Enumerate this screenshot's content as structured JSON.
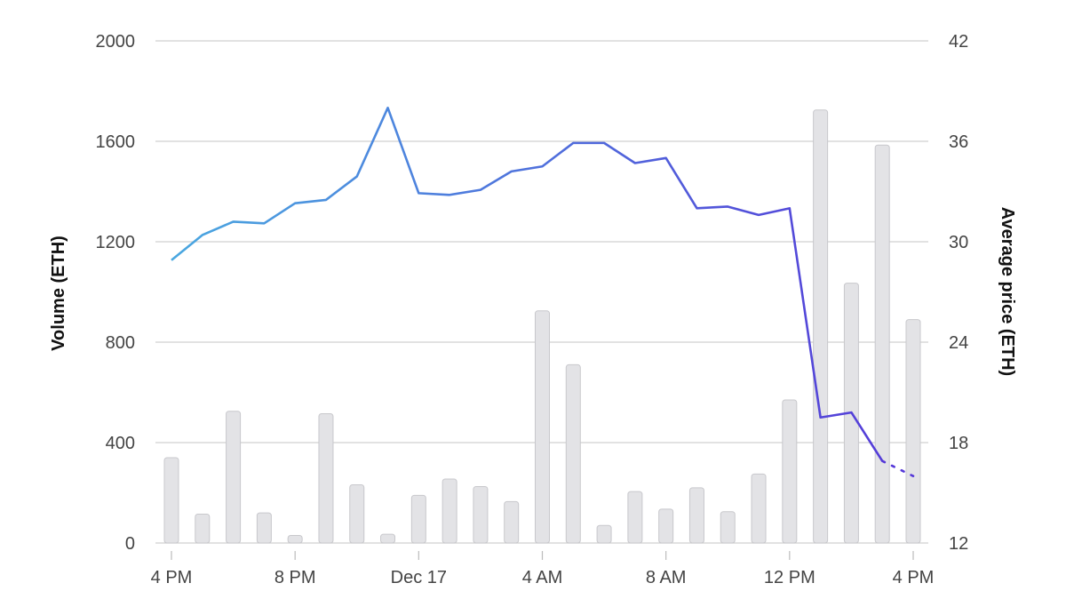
{
  "chart_data": {
    "type": "bar+line",
    "x_categories": [
      "4 PM",
      "5 PM",
      "6 PM",
      "7 PM",
      "8 PM",
      "9 PM",
      "10 PM",
      "11 PM",
      "Dec 17",
      "1 AM",
      "2 AM",
      "3 AM",
      "4 AM",
      "5 AM",
      "6 AM",
      "7 AM",
      "8 AM",
      "9 AM",
      "10 AM",
      "11 AM",
      "12 PM",
      "1 PM",
      "2 PM",
      "3 PM",
      "4 PM"
    ],
    "x_tick_labels": [
      {
        "index": 0,
        "label": "4 PM"
      },
      {
        "index": 4,
        "label": "8 PM"
      },
      {
        "index": 8,
        "label": "Dec 17"
      },
      {
        "index": 12,
        "label": "4 AM"
      },
      {
        "index": 16,
        "label": "8 AM"
      },
      {
        "index": 20,
        "label": "12 PM"
      },
      {
        "index": 24,
        "label": "4 PM"
      }
    ],
    "left_axis": {
      "label": "Volume (ETH)",
      "min": 0,
      "max": 2000,
      "ticks": [
        "0",
        "400",
        "800",
        "1200",
        "1600",
        "2000"
      ]
    },
    "right_axis": {
      "label": "Average price (ETH)",
      "min": 12,
      "max": 42,
      "ticks": [
        "12",
        "18",
        "24",
        "30",
        "36",
        "42"
      ]
    },
    "series": [
      {
        "kind": "bar",
        "axis": "left",
        "color": "#e3e3e6",
        "values": [
          340,
          115,
          525,
          120,
          30,
          515,
          232,
          35,
          190,
          255,
          225,
          165,
          925,
          710,
          70,
          205,
          135,
          220,
          125,
          275,
          570,
          1725,
          1035,
          1585,
          890
        ]
      },
      {
        "kind": "line",
        "axis": "right",
        "color_start": "#4aa8e0",
        "color_end": "#5538d8",
        "values": [
          28.9,
          30.4,
          31.2,
          31.1,
          32.3,
          32.5,
          33.9,
          38.0,
          32.9,
          32.8,
          33.1,
          34.2,
          34.5,
          35.9,
          35.9,
          34.7,
          35.0,
          32.0,
          32.1,
          31.6,
          32.0,
          19.5,
          19.8,
          16.9,
          16.0
        ],
        "dotted_last_segment": true
      }
    ],
    "grid": true
  }
}
